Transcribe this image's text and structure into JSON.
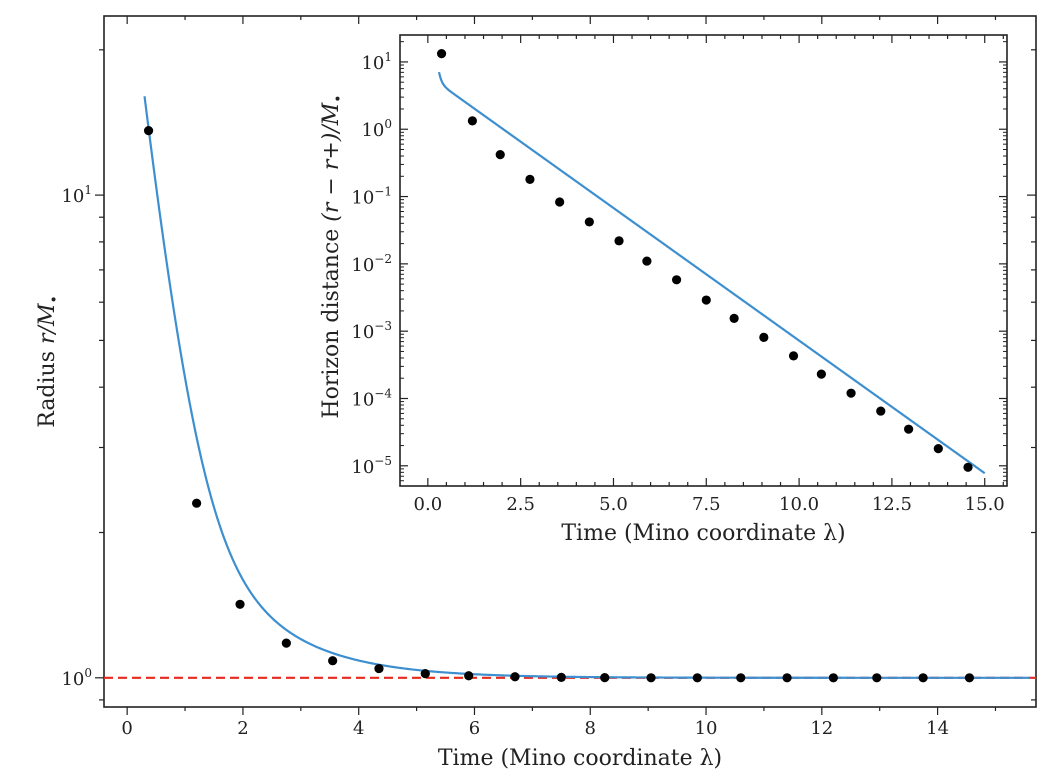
{
  "chart_data": [
    {
      "id": "main",
      "type": "line",
      "xlabel": "Time (Mino coordinate λ)",
      "ylabel_prefix": "Radius ",
      "ylabel_math": "r/M",
      "ylabel_sub": "•",
      "xlim": [
        -0.4,
        15.7
      ],
      "ylim_log": [
        0.87,
        23.5
      ],
      "xticks": [
        0,
        2,
        4,
        6,
        8,
        10,
        12,
        14
      ],
      "xtick_labels": [
        "0",
        "2",
        "4",
        "6",
        "8",
        "10",
        "12",
        "14"
      ],
      "yticks_major": [
        1,
        10
      ],
      "ytick_labels": [
        {
          "base": "10",
          "exp": "0"
        },
        {
          "base": "10",
          "exp": "1"
        }
      ],
      "curve": {
        "color": "#3d8fcf",
        "x_start": 0.3,
        "x_end": 15.6,
        "model": "r = 1 + A*exp(-k*(x - x0)) + B*exp(-m*(x - x0))",
        "params": {
          "A": 11.2,
          "k": 2.55,
          "B": 1.55,
          "m": 0.8,
          "x0": 0.37
        }
      },
      "points": {
        "x": [
          0.37,
          1.2,
          1.95,
          2.75,
          3.55,
          4.35,
          5.15,
          5.9,
          6.7,
          7.5,
          8.25,
          9.05,
          9.85,
          10.6,
          11.4,
          12.2,
          12.95,
          13.75,
          14.55
        ],
        "y": [
          13.6,
          2.3,
          1.42,
          1.18,
          1.085,
          1.045,
          1.02,
          1.01,
          1.005,
          1.002,
          1.001,
          1.0,
          1.0,
          1.0,
          1.0,
          1.0,
          1.0,
          1.0,
          1.0
        ]
      },
      "reference_line": {
        "y": 1.0,
        "color": "#e8291c",
        "style": "dashed"
      }
    },
    {
      "id": "inset",
      "type": "line",
      "xlabel": "Time (Mino coordinate λ)",
      "ylabel_prefix": "Horizon distance ",
      "ylabel_math": "(r − r+)/M",
      "ylabel_sub": "•",
      "xlim": [
        -0.75,
        15.6
      ],
      "ylim_log_exp": [
        -5.3,
        1.4
      ],
      "xticks": [
        0,
        2.5,
        5,
        7.5,
        10,
        12.5,
        15
      ],
      "xtick_labels": [
        "0.0",
        "2.5",
        "5.0",
        "7.5",
        "10.0",
        "12.5",
        "15.0"
      ],
      "yticks_exp": [
        -5,
        -4,
        -3,
        -2,
        -1,
        0,
        1
      ],
      "ytick_labels": [
        {
          "base": "10",
          "exp": "−5"
        },
        {
          "base": "10",
          "exp": "−4"
        },
        {
          "base": "10",
          "exp": "−3"
        },
        {
          "base": "10",
          "exp": "−2"
        },
        {
          "base": "10",
          "exp": "−1"
        },
        {
          "base": "10",
          "exp": "0"
        },
        {
          "base": "10",
          "exp": "1"
        }
      ],
      "curve": {
        "color": "#3d8fcf",
        "x_start": 0.3,
        "x_end": 15.0,
        "model": "d = 10^(-0.394*x + 0.8) + 10^(2.45 - 7*x)",
        "params": {
          "a": -0.394,
          "b": 0.8,
          "c": 2.45,
          "d": 7
        }
      },
      "points": {
        "x": [
          0.37,
          1.2,
          1.95,
          2.75,
          3.55,
          4.35,
          5.15,
          5.9,
          6.7,
          7.5,
          8.25,
          9.05,
          9.85,
          10.6,
          11.4,
          12.2,
          12.95,
          13.75,
          14.55
        ],
        "y": [
          13.3,
          1.33,
          0.42,
          0.18,
          0.083,
          0.042,
          0.022,
          0.011,
          0.0058,
          0.0029,
          0.00155,
          0.00081,
          0.00043,
          0.00023,
          0.00012,
          6.5e-05,
          3.5e-05,
          1.8e-05,
          9.5e-06
        ]
      }
    }
  ]
}
